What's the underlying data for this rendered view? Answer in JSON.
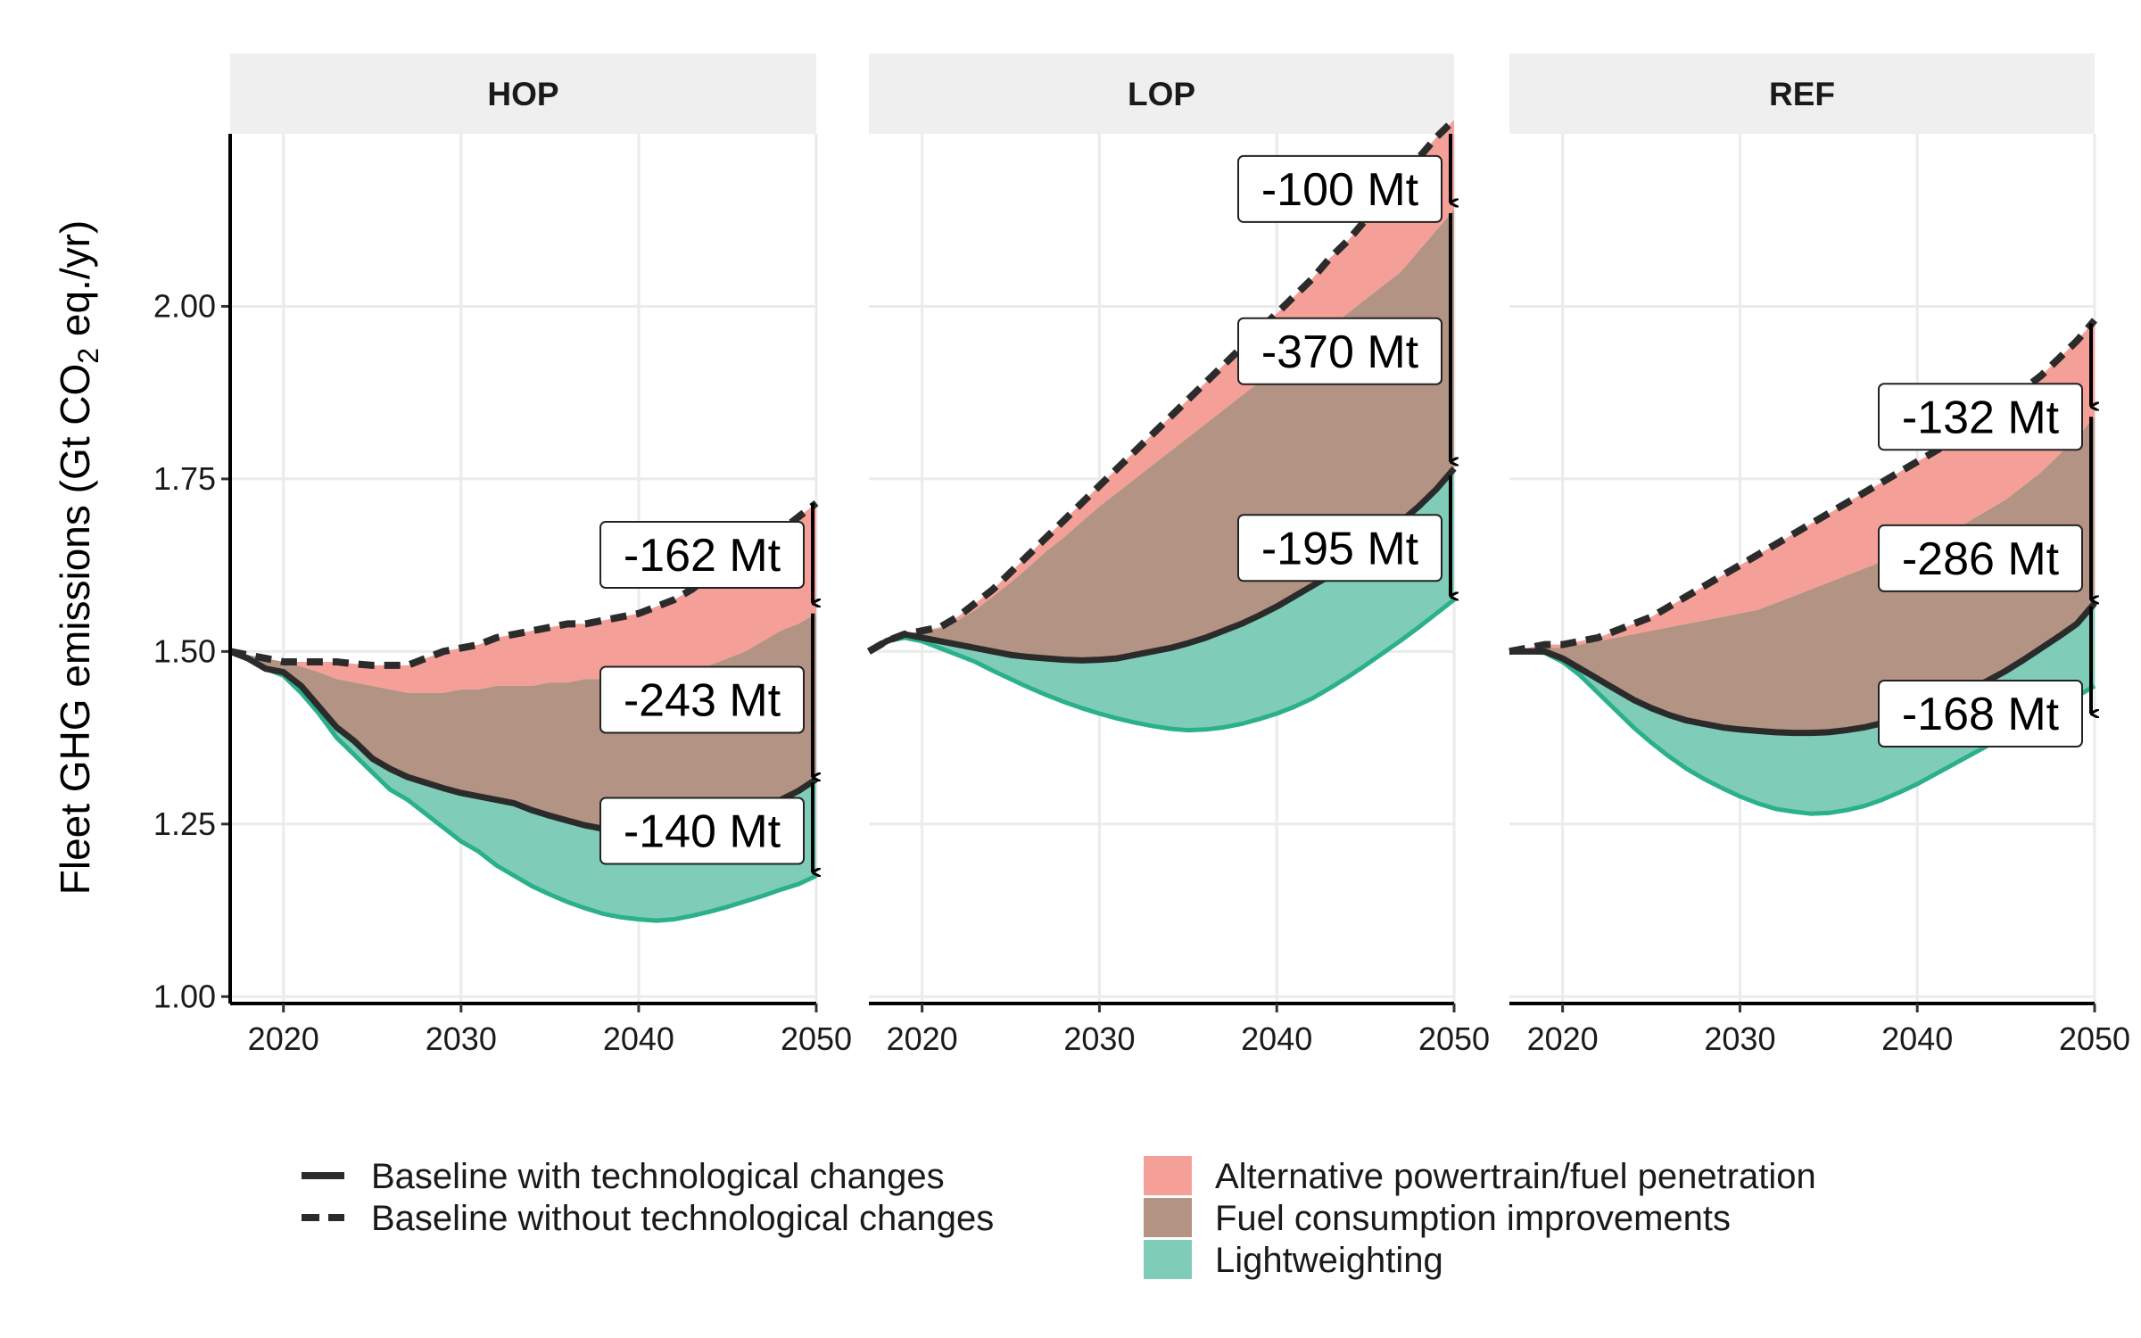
{
  "chart_data": {
    "type": "area",
    "ylabel": "Fleet GHG emissions (Gt CO₂ eq./yr)",
    "ylabel_parts": [
      "Fleet GHG emissions (Gt CO",
      "2",
      " eq./yr)"
    ],
    "xlabel": "",
    "xlim": [
      2017,
      2050
    ],
    "ylim": [
      0.99,
      2.25
    ],
    "x_ticks": [
      2020,
      2030,
      2040,
      2050
    ],
    "x_tick_labels": [
      "2020",
      "2030",
      "2040",
      "2050"
    ],
    "y_ticks": [
      1.0,
      1.25,
      1.5,
      1.75,
      2.0
    ],
    "y_tick_labels": [
      "1.00",
      "1.25",
      "1.50",
      "1.75",
      "2.00"
    ],
    "grid": true,
    "legend_position": "bottom",
    "colors": {
      "alt": "#f4a098",
      "fuel": "#b39383",
      "light": "#7fcdb9",
      "light_line": "#2bb08c",
      "baseline": "#2b2b2b",
      "strip_bg": "#efefef",
      "grid": "#ebebeb"
    },
    "legend": {
      "lines": [
        {
          "key": "with",
          "label": "Baseline with technological changes",
          "style": "solid"
        },
        {
          "key": "without",
          "label": "Baseline without technological changes",
          "style": "dashed"
        }
      ],
      "fills": [
        {
          "key": "alt",
          "label": "Alternative powertrain/fuel penetration"
        },
        {
          "key": "fuel",
          "label": "Fuel consumption improvements"
        },
        {
          "key": "light",
          "label": "Lightweighting"
        }
      ]
    },
    "panels": [
      {
        "name": "HOP",
        "x": [
          2017,
          2018,
          2019,
          2020,
          2021,
          2022,
          2023,
          2024,
          2025,
          2026,
          2027,
          2028,
          2029,
          2030,
          2031,
          2032,
          2033,
          2034,
          2035,
          2036,
          2037,
          2038,
          2039,
          2040,
          2041,
          2042,
          2043,
          2044,
          2045,
          2046,
          2047,
          2048,
          2049,
          2050
        ],
        "without": [
          1.5,
          1.495,
          1.49,
          1.485,
          1.485,
          1.485,
          1.485,
          1.482,
          1.48,
          1.48,
          1.48,
          1.49,
          1.5,
          1.505,
          1.51,
          1.52,
          1.525,
          1.53,
          1.535,
          1.54,
          1.54,
          1.545,
          1.55,
          1.555,
          1.565,
          1.575,
          1.59,
          1.61,
          1.63,
          1.645,
          1.66,
          1.675,
          1.695,
          1.715
        ],
        "alt_lower": [
          1.5,
          1.495,
          1.49,
          1.485,
          1.478,
          1.47,
          1.46,
          1.455,
          1.45,
          1.445,
          1.44,
          1.44,
          1.44,
          1.445,
          1.445,
          1.45,
          1.45,
          1.45,
          1.455,
          1.455,
          1.46,
          1.46,
          1.465,
          1.465,
          1.47,
          1.47,
          1.475,
          1.48,
          1.49,
          1.5,
          1.515,
          1.53,
          1.54,
          1.555
        ],
        "with": [
          1.5,
          1.49,
          1.475,
          1.47,
          1.45,
          1.42,
          1.39,
          1.37,
          1.345,
          1.33,
          1.318,
          1.31,
          1.302,
          1.295,
          1.29,
          1.285,
          1.28,
          1.27,
          1.262,
          1.255,
          1.248,
          1.243,
          1.24,
          1.24,
          1.24,
          1.242,
          1.246,
          1.252,
          1.258,
          1.265,
          1.275,
          1.285,
          1.298,
          1.315
        ],
        "light": [
          1.5,
          1.49,
          1.475,
          1.465,
          1.44,
          1.41,
          1.375,
          1.35,
          1.325,
          1.3,
          1.285,
          1.265,
          1.245,
          1.225,
          1.21,
          1.19,
          1.175,
          1.16,
          1.148,
          1.137,
          1.128,
          1.12,
          1.115,
          1.112,
          1.11,
          1.112,
          1.117,
          1.123,
          1.13,
          1.138,
          1.146,
          1.155,
          1.163,
          1.175
        ],
        "annotations": [
          {
            "label": "-162 Mt",
            "y": 1.64,
            "top": 1.715,
            "bottom": 1.57
          },
          {
            "label": "-243 Mt",
            "y": 1.43,
            "top": 1.555,
            "bottom": 1.318
          },
          {
            "label": "-140 Mt",
            "y": 1.24,
            "top": 1.31,
            "bottom": 1.18
          }
        ]
      },
      {
        "name": "LOP",
        "x": [
          2017,
          2018,
          2019,
          2020,
          2021,
          2022,
          2023,
          2024,
          2025,
          2026,
          2027,
          2028,
          2029,
          2030,
          2031,
          2032,
          2033,
          2034,
          2035,
          2036,
          2037,
          2038,
          2039,
          2040,
          2041,
          2042,
          2043,
          2044,
          2045,
          2046,
          2047,
          2048,
          2049,
          2050
        ],
        "without": [
          1.5,
          1.515,
          1.525,
          1.53,
          1.535,
          1.55,
          1.57,
          1.59,
          1.615,
          1.64,
          1.665,
          1.69,
          1.715,
          1.74,
          1.765,
          1.79,
          1.815,
          1.84,
          1.865,
          1.89,
          1.915,
          1.94,
          1.965,
          1.99,
          2.015,
          2.04,
          2.07,
          2.095,
          2.125,
          2.155,
          2.185,
          2.215,
          2.245,
          2.27
        ],
        "alt_lower": [
          1.5,
          1.515,
          1.525,
          1.53,
          1.533,
          1.545,
          1.56,
          1.58,
          1.6,
          1.622,
          1.645,
          1.665,
          1.688,
          1.71,
          1.73,
          1.75,
          1.77,
          1.79,
          1.81,
          1.83,
          1.85,
          1.87,
          1.89,
          1.91,
          1.93,
          1.95,
          1.97,
          1.99,
          2.01,
          2.03,
          2.05,
          2.08,
          2.11,
          2.14
        ],
        "with": [
          1.5,
          1.515,
          1.525,
          1.52,
          1.515,
          1.51,
          1.505,
          1.5,
          1.495,
          1.492,
          1.49,
          1.488,
          1.487,
          1.488,
          1.49,
          1.495,
          1.5,
          1.505,
          1.512,
          1.52,
          1.53,
          1.54,
          1.552,
          1.565,
          1.58,
          1.595,
          1.61,
          1.628,
          1.648,
          1.668,
          1.688,
          1.71,
          1.735,
          1.765
        ],
        "light": [
          1.5,
          1.515,
          1.52,
          1.515,
          1.505,
          1.495,
          1.485,
          1.472,
          1.46,
          1.448,
          1.437,
          1.427,
          1.418,
          1.41,
          1.403,
          1.397,
          1.392,
          1.388,
          1.386,
          1.387,
          1.39,
          1.395,
          1.402,
          1.41,
          1.42,
          1.432,
          1.447,
          1.463,
          1.48,
          1.498,
          1.516,
          1.535,
          1.555,
          1.575
        ],
        "annotations": [
          {
            "label": "-100 Mt",
            "y": 2.17,
            "top": 2.25,
            "bottom": 2.15
          },
          {
            "label": "-370 Mt",
            "y": 1.935,
            "top": 2.135,
            "bottom": 1.775
          },
          {
            "label": "-195 Mt",
            "y": 1.65,
            "top": 1.755,
            "bottom": 1.58
          }
        ]
      },
      {
        "name": "REF",
        "x": [
          2017,
          2018,
          2019,
          2020,
          2021,
          2022,
          2023,
          2024,
          2025,
          2026,
          2027,
          2028,
          2029,
          2030,
          2031,
          2032,
          2033,
          2034,
          2035,
          2036,
          2037,
          2038,
          2039,
          2040,
          2041,
          2042,
          2043,
          2044,
          2045,
          2046,
          2047,
          2048,
          2049,
          2050
        ],
        "without": [
          1.5,
          1.505,
          1.51,
          1.51,
          1.515,
          1.52,
          1.53,
          1.54,
          1.55,
          1.565,
          1.58,
          1.595,
          1.61,
          1.625,
          1.64,
          1.655,
          1.67,
          1.685,
          1.7,
          1.715,
          1.73,
          1.745,
          1.76,
          1.775,
          1.79,
          1.805,
          1.82,
          1.84,
          1.86,
          1.88,
          1.9,
          1.925,
          1.95,
          1.98
        ],
        "alt_lower": [
          1.5,
          1.505,
          1.505,
          1.505,
          1.51,
          1.515,
          1.52,
          1.525,
          1.53,
          1.535,
          1.54,
          1.545,
          1.55,
          1.555,
          1.56,
          1.57,
          1.58,
          1.59,
          1.6,
          1.61,
          1.62,
          1.63,
          1.64,
          1.65,
          1.66,
          1.675,
          1.69,
          1.705,
          1.72,
          1.74,
          1.76,
          1.785,
          1.81,
          1.84
        ],
        "with": [
          1.5,
          1.5,
          1.5,
          1.49,
          1.475,
          1.46,
          1.445,
          1.43,
          1.418,
          1.408,
          1.4,
          1.395,
          1.39,
          1.387,
          1.385,
          1.383,
          1.382,
          1.382,
          1.383,
          1.386,
          1.39,
          1.396,
          1.404,
          1.412,
          1.422,
          1.433,
          1.445,
          1.458,
          1.472,
          1.488,
          1.505,
          1.522,
          1.54,
          1.57
        ],
        "light": [
          1.5,
          1.5,
          1.498,
          1.485,
          1.465,
          1.44,
          1.415,
          1.39,
          1.368,
          1.348,
          1.33,
          1.315,
          1.302,
          1.29,
          1.28,
          1.272,
          1.268,
          1.265,
          1.266,
          1.27,
          1.276,
          1.285,
          1.296,
          1.308,
          1.322,
          1.336,
          1.35,
          1.364,
          1.378,
          1.392,
          1.406,
          1.42,
          1.435,
          1.45
        ],
        "annotations": [
          {
            "label": "-132 Mt",
            "y": 1.84,
            "top": 1.975,
            "bottom": 1.855
          },
          {
            "label": "-286 Mt",
            "y": 1.635,
            "top": 1.84,
            "bottom": 1.575
          },
          {
            "label": "-168 Mt",
            "y": 1.41,
            "top": 1.565,
            "bottom": 1.41
          }
        ]
      }
    ]
  }
}
